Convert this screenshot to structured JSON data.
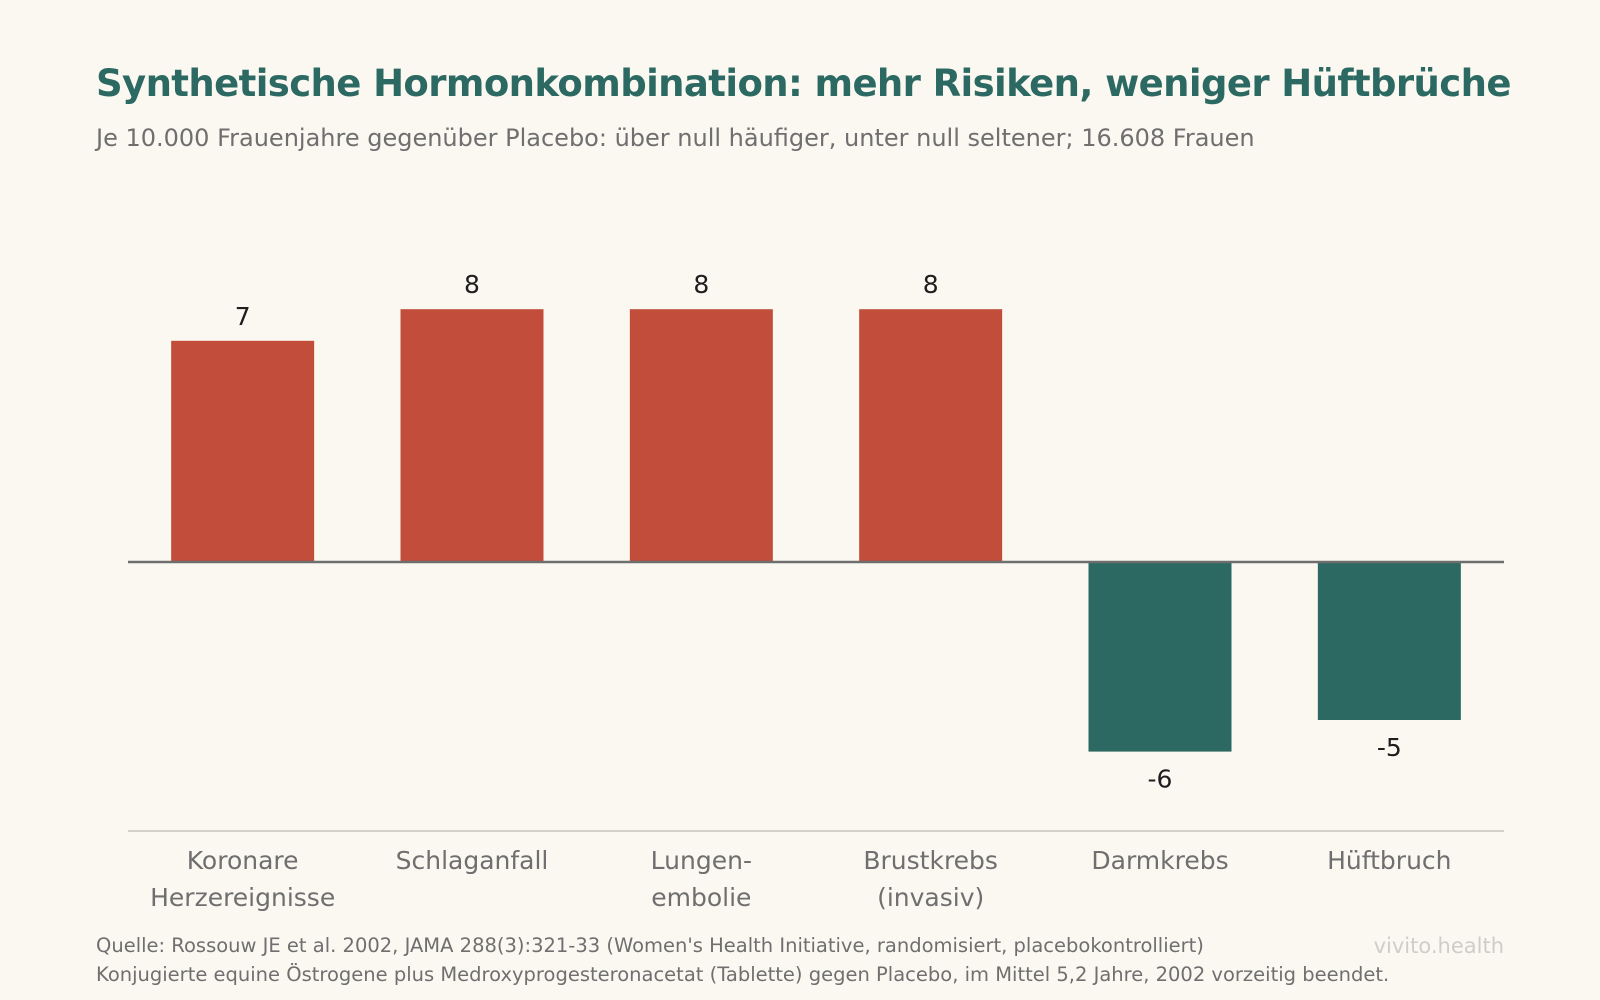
{
  "header": {
    "title": "Synthetische Hormonkombination: mehr Risiken, weniger Hüftbrüche",
    "subtitle": "Je 10.000 Frauenjahre gegenüber Placebo: über null häufiger, unter null seltener; 16.608 Frauen"
  },
  "footer": {
    "source": "Quelle: Rossouw JE et al. 2002, JAMA 288(3):321-33 (Women's Health Initiative, randomisiert, placebokontrolliert)",
    "note": "Konjugierte equine Östrogene plus Medroxyprogesteronacetat (Tablette) gegen Placebo, im Mittel 5,2 Jahre, 2002 vorzeitig beendet.",
    "brand": "vivito.health"
  },
  "colors": {
    "positive": "#c14d3a",
    "negative": "#2c6962",
    "zero_line": "#6e6e6e",
    "axis_line": "#d4d1cb",
    "value_label": "#1e1e1e",
    "category_label": "#6f6f6f"
  },
  "chart_data": {
    "type": "bar",
    "categories": [
      [
        "Koronare",
        "Herzereignisse"
      ],
      [
        "Schlaganfall"
      ],
      [
        "Lungen-",
        "embolie"
      ],
      [
        "Brustkrebs",
        "(invasiv)"
      ],
      [
        "Darmkrebs"
      ],
      [
        "Hüftbruch"
      ]
    ],
    "values": [
      7,
      8,
      8,
      8,
      -6,
      -5
    ],
    "value_labels": [
      "7",
      "8",
      "8",
      "8",
      "-6",
      "-5"
    ],
    "ylim": [
      -6,
      8
    ],
    "grid": false,
    "legend": "none"
  }
}
